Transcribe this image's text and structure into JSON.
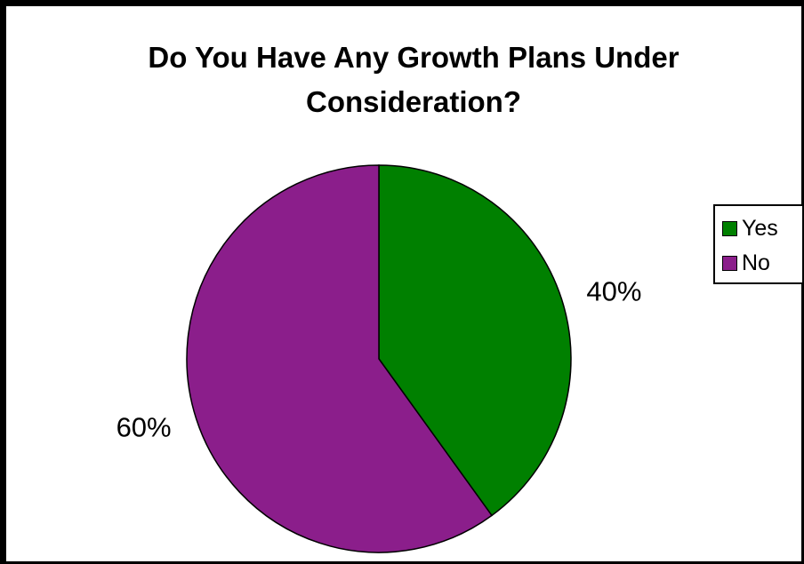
{
  "chart_data": {
    "type": "pie",
    "title_lines": [
      "Do You Have Any Growth Plans Under",
      "Consideration?"
    ],
    "categories": [
      "Yes",
      "No"
    ],
    "values": [
      40,
      60
    ],
    "labels": [
      "40%",
      "60%"
    ],
    "colors": [
      "#008000",
      "#8B1E8B"
    ],
    "legend_position": "right"
  }
}
